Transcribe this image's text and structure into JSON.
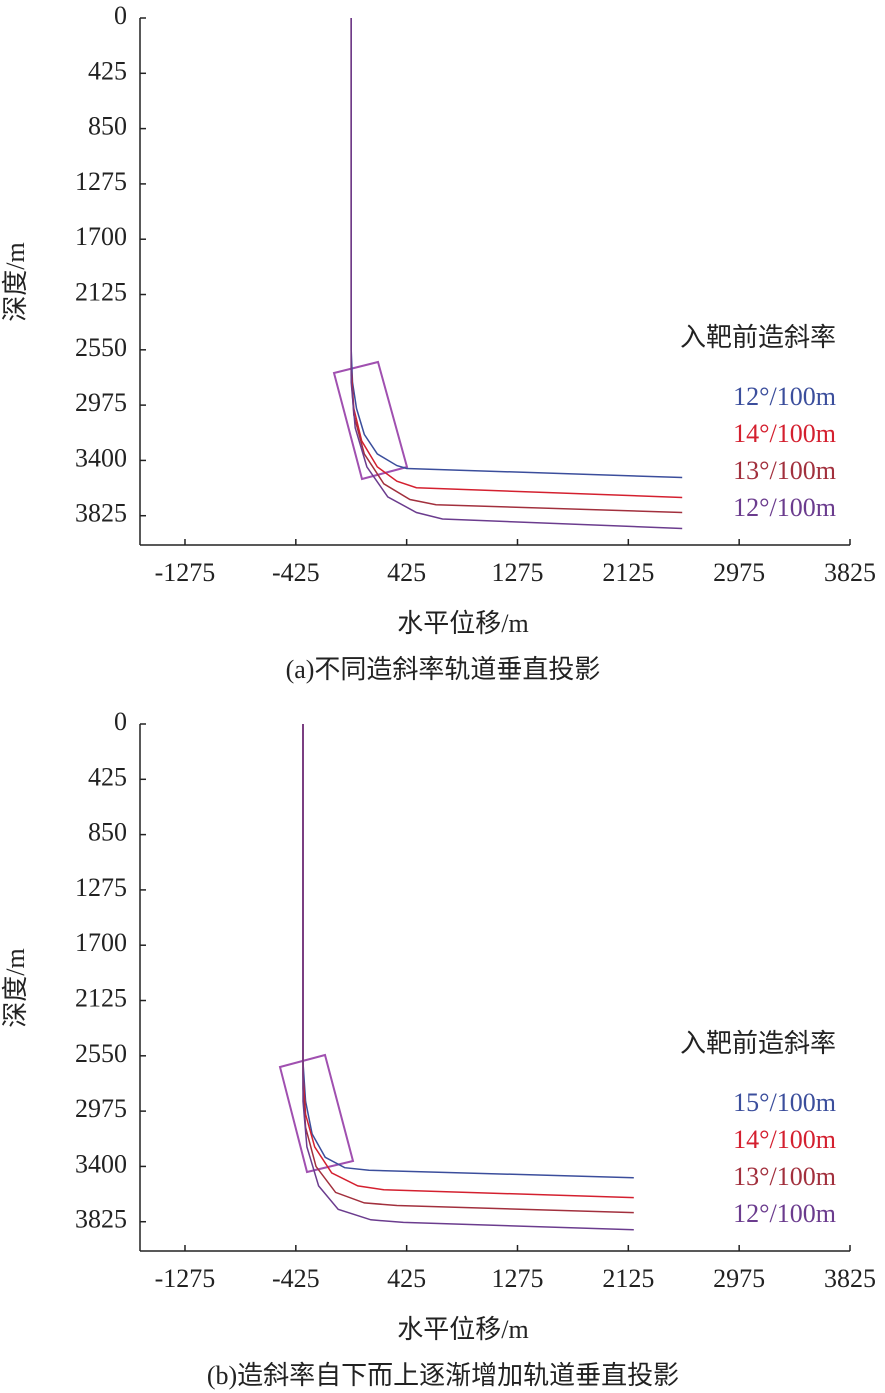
{
  "chart_data": [
    {
      "type": "line",
      "title": "(a)不同造斜率轨道垂直投影",
      "xlabel": "水平位移/m",
      "ylabel": "深度/m",
      "legend_title": "入靶前造斜率",
      "xlim": [
        -1620,
        3825
      ],
      "xticks": [
        -1275,
        -425,
        425,
        1275,
        2125,
        2975,
        3825
      ],
      "ylim": [
        0,
        4050
      ],
      "yticks": [
        0,
        425,
        850,
        1275,
        1700,
        2125,
        2550,
        2975,
        3400,
        3825
      ],
      "y_inverted": true,
      "grid": false,
      "legend": "right",
      "series": [
        {
          "name": "12°/100m",
          "color": "#3b4e9c",
          "x": [
            0,
            0,
            10,
            40,
            100,
            200,
            350,
            425,
            2538
          ],
          "values": [
            0,
            2550,
            2800,
            3000,
            3200,
            3350,
            3440,
            3462,
            3531
          ]
        },
        {
          "name": "14°/100m",
          "color": "#d4202f",
          "x": [
            0,
            0,
            20,
            80,
            200,
            350,
            500,
            2538
          ],
          "values": [
            0,
            2700,
            3000,
            3250,
            3450,
            3560,
            3610,
            3685
          ]
        },
        {
          "name": "13°/100m",
          "color": "#a2303d",
          "x": [
            0,
            0,
            20,
            100,
            250,
            450,
            650,
            2538
          ],
          "values": [
            0,
            2750,
            3050,
            3350,
            3580,
            3700,
            3740,
            3800
          ]
        },
        {
          "name": "12°/100m",
          "color": "#6b3c8e",
          "x": [
            0,
            0,
            30,
            120,
            280,
            500,
            700,
            2538
          ],
          "values": [
            0,
            2800,
            3150,
            3450,
            3680,
            3800,
            3850,
            3923
          ]
        }
      ]
    },
    {
      "type": "line",
      "title": "(b)造斜率自下而上逐渐增加轨道垂直投影",
      "xlabel": "水平位移/m",
      "ylabel": "深度/m",
      "legend_title": "入靶前造斜率",
      "xlim": [
        -1620,
        3825
      ],
      "xticks": [
        -1275,
        -425,
        425,
        1275,
        2125,
        2975,
        3825
      ],
      "ylim": [
        0,
        4050
      ],
      "yticks": [
        0,
        425,
        850,
        1275,
        1700,
        2125,
        2550,
        2975,
        3400,
        3825
      ],
      "y_inverted": true,
      "grid": false,
      "legend": "right",
      "series": [
        {
          "name": "15°/100m",
          "color": "#3b4e9c",
          "x": [
            -370,
            -370,
            -350,
            -300,
            -200,
            -50,
            136,
            2167
          ],
          "values": [
            0,
            2600,
            2900,
            3150,
            3330,
            3410,
            3430,
            3487
          ]
        },
        {
          "name": "14°/100m",
          "color": "#d4202f",
          "x": [
            -370,
            -370,
            -350,
            -280,
            -150,
            50,
            250,
            2167
          ],
          "values": [
            0,
            2700,
            3000,
            3250,
            3450,
            3550,
            3580,
            3640
          ]
        },
        {
          "name": "13°/100m",
          "color": "#a2303d",
          "x": [
            -370,
            -370,
            -350,
            -270,
            -120,
            100,
            350,
            2167
          ],
          "values": [
            0,
            2800,
            3100,
            3400,
            3600,
            3680,
            3700,
            3755
          ]
        },
        {
          "name": "12°/100m",
          "color": "#6b3c8e",
          "x": [
            -370,
            -370,
            -340,
            -250,
            -100,
            150,
            400,
            2167
          ],
          "values": [
            0,
            2900,
            3250,
            3550,
            3730,
            3810,
            3830,
            3886
          ]
        }
      ]
    }
  ]
}
